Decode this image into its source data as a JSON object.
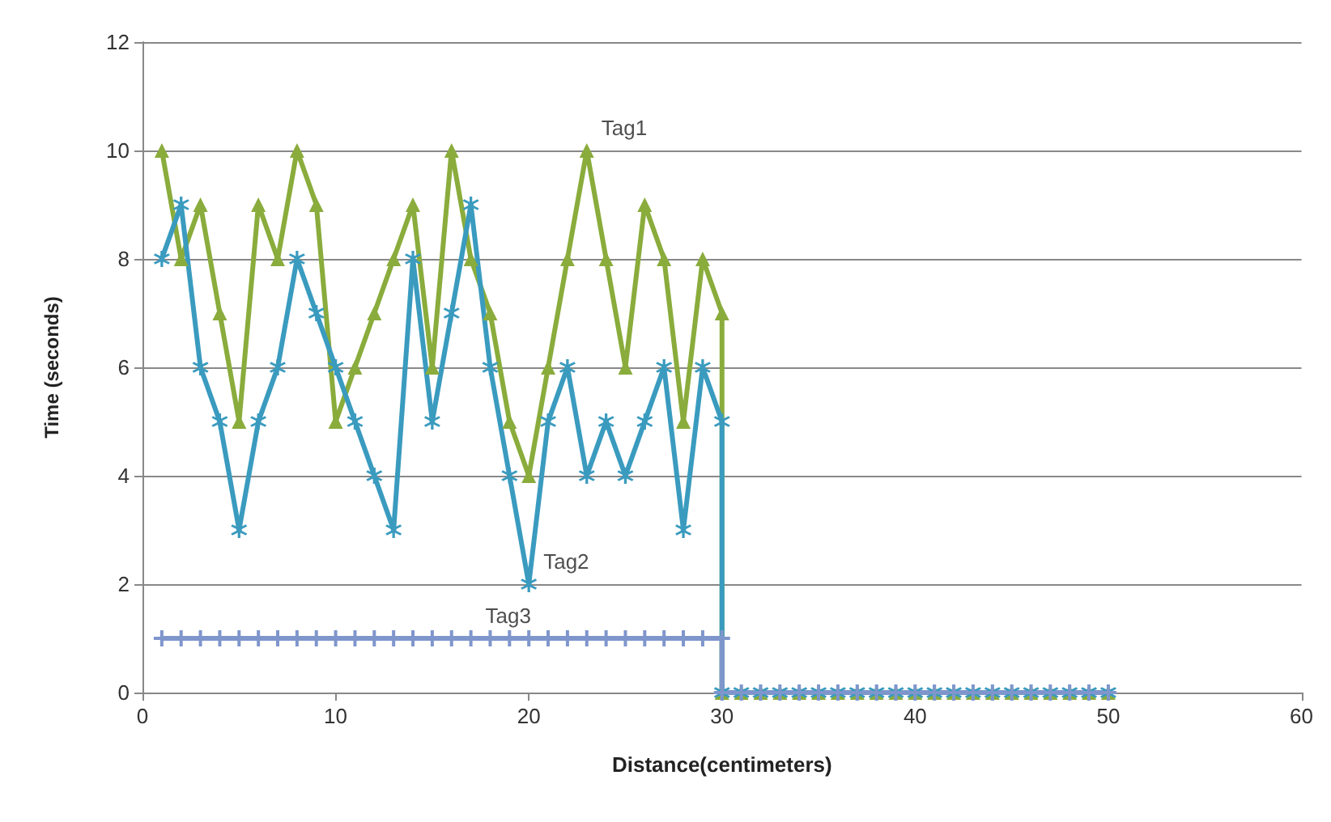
{
  "chart_data": {
    "type": "line",
    "xlabel": "Distance(centimeters)",
    "ylabel": "Time (seconds)",
    "xlim": [
      0,
      60
    ],
    "xticks": [
      0,
      10,
      20,
      30,
      40,
      50,
      60
    ],
    "ylim": [
      0,
      12
    ],
    "yticks": [
      0,
      2,
      4,
      6,
      8,
      10,
      12
    ],
    "grid": "y",
    "series": [
      {
        "color": "#8aac3c",
        "marker": "triangle",
        "x": [
          1,
          2,
          3,
          4,
          5,
          6,
          7,
          8,
          9,
          10,
          11,
          12,
          13,
          14,
          15,
          16,
          17,
          18,
          19,
          20,
          21,
          22,
          23,
          24,
          25,
          26,
          27,
          28,
          29,
          30,
          30,
          31,
          32,
          33,
          34,
          35,
          36,
          37,
          38,
          39,
          40,
          41,
          42,
          43,
          44,
          45,
          46,
          47,
          48,
          49,
          50
        ],
        "values": [
          10,
          8,
          9,
          7,
          5,
          9,
          8,
          10,
          9,
          5,
          6,
          7,
          8,
          9,
          6,
          10,
          8,
          7,
          5,
          4,
          6,
          8,
          10,
          8,
          6,
          9,
          8,
          5,
          8,
          7,
          0,
          0,
          0,
          0,
          0,
          0,
          0,
          0,
          0,
          0,
          0,
          0,
          0,
          0,
          0,
          0,
          0,
          0,
          0,
          0,
          0
        ]
      },
      {
        "color": "#3a9bbf",
        "marker": "star",
        "x": [
          1,
          2,
          3,
          4,
          5,
          6,
          7,
          8,
          9,
          10,
          11,
          12,
          13,
          14,
          15,
          16,
          17,
          18,
          19,
          20,
          21,
          22,
          23,
          24,
          25,
          26,
          27,
          28,
          29,
          30,
          30,
          31,
          32,
          33,
          34,
          35,
          36,
          37,
          38,
          39,
          40,
          41,
          42,
          43,
          44,
          45,
          46,
          47,
          48,
          49,
          50
        ],
        "values": [
          8,
          9,
          6,
          5,
          3,
          5,
          6,
          8,
          7,
          6,
          5,
          4,
          3,
          8,
          5,
          7,
          9,
          6,
          4,
          2,
          5,
          6,
          4,
          5,
          4,
          5,
          6,
          3,
          6,
          5,
          0,
          0,
          0,
          0,
          0,
          0,
          0,
          0,
          0,
          0,
          0,
          0,
          0,
          0,
          0,
          0,
          0,
          0,
          0,
          0,
          0
        ]
      },
      {
        "color": "#7f96cc",
        "marker": "cross",
        "x": [
          1,
          2,
          3,
          4,
          5,
          6,
          7,
          8,
          9,
          10,
          11,
          12,
          13,
          14,
          15,
          16,
          17,
          18,
          19,
          20,
          21,
          22,
          23,
          24,
          25,
          26,
          27,
          28,
          29,
          30,
          30,
          31,
          32,
          33,
          34,
          35,
          36,
          37,
          38,
          39,
          40,
          41,
          42,
          43,
          44,
          45,
          46,
          47,
          48,
          49,
          50
        ],
        "values": [
          1,
          1,
          1,
          1,
          1,
          1,
          1,
          1,
          1,
          1,
          1,
          1,
          1,
          1,
          1,
          1,
          1,
          1,
          1,
          1,
          1,
          1,
          1,
          1,
          1,
          1,
          1,
          1,
          1,
          1,
          0,
          0,
          0,
          0,
          0,
          0,
          0,
          0,
          0,
          0,
          0,
          0,
          0,
          0,
          0,
          0,
          0,
          0,
          0,
          0,
          0
        ]
      }
    ],
    "annotations": [
      {
        "text": "Tag1",
        "x": 23,
        "y": 10
      },
      {
        "text": "Tag2",
        "x": 20,
        "y": 2
      },
      {
        "text": "Tag3",
        "x": 17,
        "y": 1
      }
    ]
  }
}
